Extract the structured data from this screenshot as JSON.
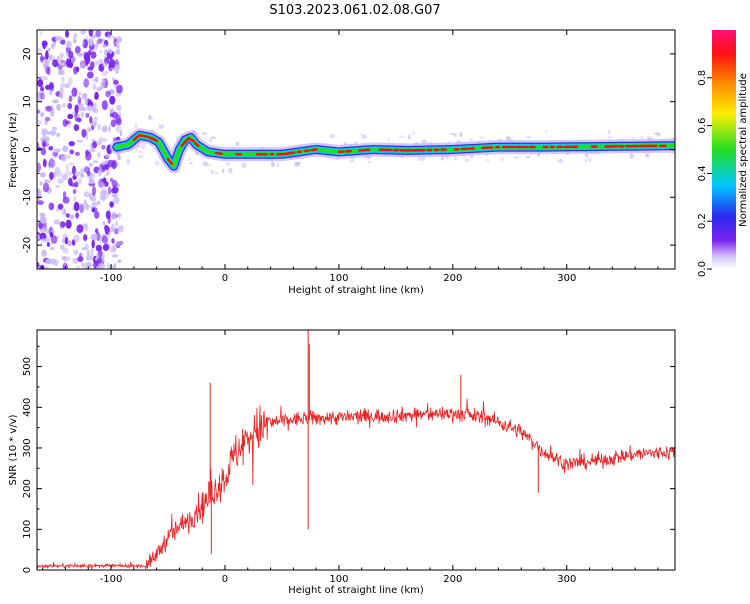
{
  "title": "S103.2023.061.02.08.G07",
  "colors": {
    "snr_line": "#ee2222",
    "ridge_core": "#ee1111",
    "ridge_mid": "#22dd22",
    "ridge_outer": "#00c8ff",
    "ridge_edge": "#3322dd",
    "noise": "#7a22ee",
    "noise_light": "#c9b8f5",
    "axis": "#000000"
  },
  "colorbar_label": "Normalized spectral amplitude",
  "chart_data": [
    {
      "type": "heatmap",
      "xlabel": "Height of straight line (km)",
      "ylabel": "Frequency (Hz)",
      "xlim": [
        -165,
        395
      ],
      "ylim": [
        -25,
        25
      ],
      "xticks": [
        -100,
        0,
        100,
        200,
        300
      ],
      "xtick_labels": [
        "-100",
        "0",
        "100",
        "200",
        "300"
      ],
      "yticks": [
        -20,
        -10,
        0,
        10,
        20
      ],
      "ytick_labels": [
        "-20",
        "-10",
        "0",
        "10",
        "20"
      ],
      "colorbar": {
        "label": "Normalized spectral amplitude",
        "range": [
          0.0,
          1.0
        ],
        "ticks": [
          0.0,
          0.2,
          0.4,
          0.6,
          0.8
        ],
        "tick_labels": [
          "0.0",
          "0.2",
          "0.4",
          "0.6",
          "0.8"
        ],
        "colormap": [
          "#ffffff",
          "#d8c8f8",
          "#7a22ee",
          "#2a2aee",
          "#00c8ff",
          "#22dd22",
          "#ffee00",
          "#ff8800",
          "#ff1111",
          "#ff1177"
        ]
      },
      "noise_region_x": [
        -165,
        -95
      ],
      "ridge": [
        {
          "x": -95,
          "y": 0.5
        },
        {
          "x": -85,
          "y": 1.0
        },
        {
          "x": -75,
          "y": 3.0
        },
        {
          "x": -65,
          "y": 2.5
        },
        {
          "x": -58,
          "y": 1.5
        },
        {
          "x": -50,
          "y": -2.0
        },
        {
          "x": -45,
          "y": -3.5
        },
        {
          "x": -40,
          "y": 0.0
        },
        {
          "x": -35,
          "y": 2.0
        },
        {
          "x": -30,
          "y": 2.5
        },
        {
          "x": -25,
          "y": 1.0
        },
        {
          "x": -15,
          "y": -0.5
        },
        {
          "x": 0,
          "y": -1.0
        },
        {
          "x": 20,
          "y": -1.0
        },
        {
          "x": 50,
          "y": -1.0
        },
        {
          "x": 80,
          "y": 0.0
        },
        {
          "x": 100,
          "y": -0.5
        },
        {
          "x": 130,
          "y": 0.0
        },
        {
          "x": 160,
          "y": -0.2
        },
        {
          "x": 200,
          "y": 0.0
        },
        {
          "x": 240,
          "y": 0.5
        },
        {
          "x": 280,
          "y": 0.5
        },
        {
          "x": 320,
          "y": 0.6
        },
        {
          "x": 360,
          "y": 0.7
        },
        {
          "x": 395,
          "y": 0.8
        }
      ]
    },
    {
      "type": "line",
      "xlabel": "Height of straight line (km)",
      "ylabel": "SNR (10 * v/v)",
      "xlim": [
        -165,
        395
      ],
      "ylim": [
        0,
        590
      ],
      "xticks": [
        -100,
        0,
        100,
        200,
        300
      ],
      "xtick_labels": [
        "-100",
        "0",
        "100",
        "200",
        "300"
      ],
      "yticks": [
        0,
        100,
        200,
        300,
        400,
        500
      ],
      "ytick_labels": [
        "0",
        "100",
        "200",
        "300",
        "400",
        "500"
      ],
      "series": [
        {
          "color": "#ee2222",
          "trend": [
            {
              "x": -165,
              "y": 10
            },
            {
              "x": -70,
              "y": 10
            },
            {
              "x": -62,
              "y": 30
            },
            {
              "x": -50,
              "y": 80
            },
            {
              "x": -30,
              "y": 130
            },
            {
              "x": -15,
              "y": 175
            },
            {
              "x": 0,
              "y": 230
            },
            {
              "x": 10,
              "y": 290
            },
            {
              "x": 25,
              "y": 340
            },
            {
              "x": 45,
              "y": 365
            },
            {
              "x": 70,
              "y": 372
            },
            {
              "x": 100,
              "y": 375
            },
            {
              "x": 150,
              "y": 380
            },
            {
              "x": 200,
              "y": 385
            },
            {
              "x": 230,
              "y": 375
            },
            {
              "x": 260,
              "y": 340
            },
            {
              "x": 280,
              "y": 290
            },
            {
              "x": 300,
              "y": 260
            },
            {
              "x": 330,
              "y": 270
            },
            {
              "x": 360,
              "y": 285
            },
            {
              "x": 395,
              "y": 290
            }
          ],
          "spikes": [
            {
              "x": -13,
              "y": 460
            },
            {
              "x": -12,
              "y": 40
            },
            {
              "x": 73,
              "y": 590
            },
            {
              "x": 73,
              "y": 100
            },
            {
              "x": 74,
              "y": 555
            },
            {
              "x": 207,
              "y": 480
            },
            {
              "x": 275,
              "y": 190
            }
          ]
        }
      ]
    }
  ]
}
